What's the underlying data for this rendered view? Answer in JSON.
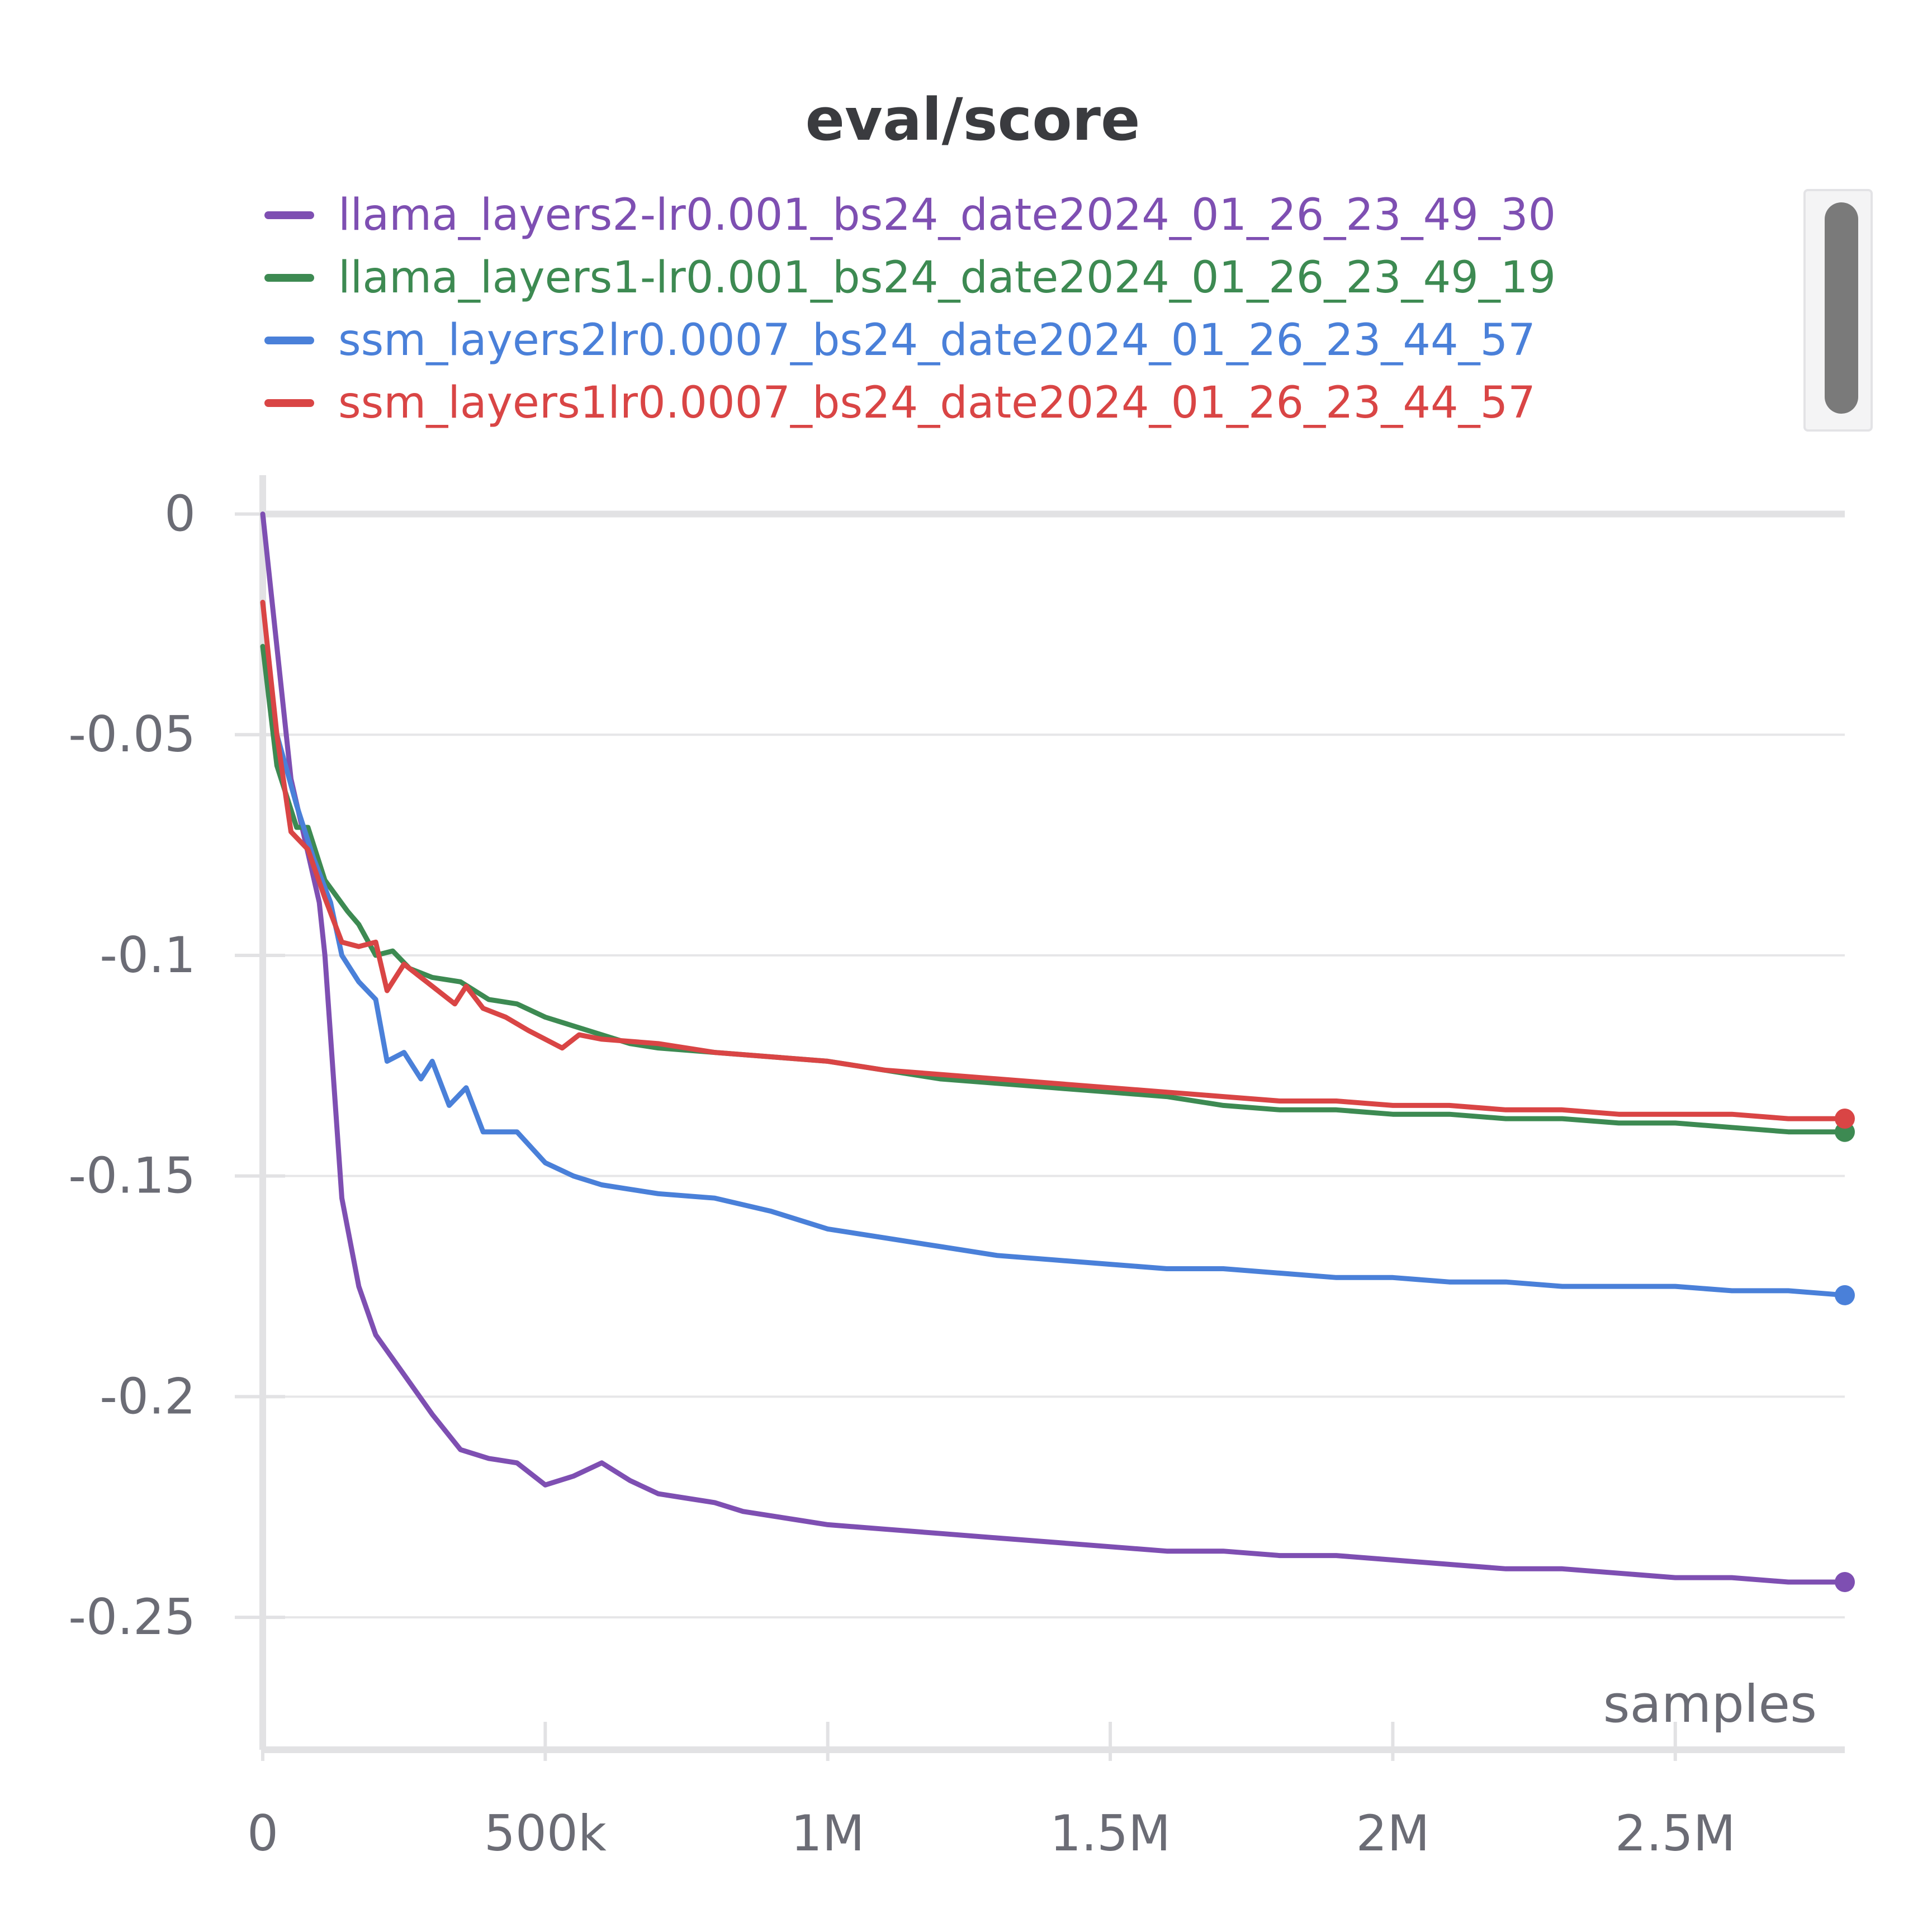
{
  "chart_data": {
    "type": "line",
    "title": "eval/score",
    "xlabel": "samples",
    "ylabel": "",
    "xlim": [
      0,
      2800000
    ],
    "ylim": [
      -0.28,
      0.005
    ],
    "x_ticks": [
      0,
      500000,
      1000000,
      1500000,
      2000000,
      2500000
    ],
    "x_tick_labels": [
      "0",
      "500k",
      "1M",
      "1.5M",
      "2M",
      "2.5M"
    ],
    "y_ticks": [
      0,
      -0.05,
      -0.1,
      -0.15,
      -0.2,
      -0.25
    ],
    "y_tick_labels": [
      "0",
      "-0.05",
      "-0.1",
      "-0.15",
      "-0.2",
      "-0.25"
    ],
    "grid": true,
    "legend_position": "top",
    "series": [
      {
        "name": "llama_layers2-lr0.001_bs24_date2024_01_26_23_49_30",
        "color": "#7e4fb2",
        "points": [
          [
            0,
            0
          ],
          [
            50000,
            -0.06
          ],
          [
            100000,
            -0.088
          ],
          [
            110000,
            -0.1
          ],
          [
            140000,
            -0.155
          ],
          [
            170000,
            -0.175
          ],
          [
            200000,
            -0.186
          ],
          [
            250000,
            -0.195
          ],
          [
            300000,
            -0.204
          ],
          [
            350000,
            -0.212
          ],
          [
            400000,
            -0.214
          ],
          [
            450000,
            -0.215
          ],
          [
            500000,
            -0.22
          ],
          [
            550000,
            -0.218
          ],
          [
            600000,
            -0.215
          ],
          [
            650000,
            -0.219
          ],
          [
            700000,
            -0.222
          ],
          [
            750000,
            -0.223
          ],
          [
            800000,
            -0.224
          ],
          [
            850000,
            -0.226
          ],
          [
            900000,
            -0.227
          ],
          [
            950000,
            -0.228
          ],
          [
            1000000,
            -0.229
          ],
          [
            1100000,
            -0.23
          ],
          [
            1200000,
            -0.231
          ],
          [
            1300000,
            -0.232
          ],
          [
            1400000,
            -0.233
          ],
          [
            1500000,
            -0.234
          ],
          [
            1600000,
            -0.235
          ],
          [
            1700000,
            -0.235
          ],
          [
            1800000,
            -0.236
          ],
          [
            1900000,
            -0.236
          ],
          [
            2000000,
            -0.237
          ],
          [
            2100000,
            -0.238
          ],
          [
            2200000,
            -0.239
          ],
          [
            2300000,
            -0.239
          ],
          [
            2400000,
            -0.24
          ],
          [
            2500000,
            -0.241
          ],
          [
            2600000,
            -0.241
          ],
          [
            2700000,
            -0.242
          ],
          [
            2800000,
            -0.242
          ]
        ]
      },
      {
        "name": "llama_layers1-lr0.001_bs24_date2024_01_26_23_49_19",
        "color": "#3d8a52",
        "points": [
          [
            0,
            -0.03
          ],
          [
            25000,
            -0.057
          ],
          [
            60000,
            -0.071
          ],
          [
            80000,
            -0.071
          ],
          [
            110000,
            -0.083
          ],
          [
            150000,
            -0.09
          ],
          [
            170000,
            -0.093
          ],
          [
            200000,
            -0.1
          ],
          [
            230000,
            -0.099
          ],
          [
            260000,
            -0.103
          ],
          [
            300000,
            -0.105
          ],
          [
            350000,
            -0.106
          ],
          [
            400000,
            -0.11
          ],
          [
            450000,
            -0.111
          ],
          [
            500000,
            -0.114
          ],
          [
            550000,
            -0.116
          ],
          [
            600000,
            -0.118
          ],
          [
            650000,
            -0.12
          ],
          [
            700000,
            -0.121
          ],
          [
            800000,
            -0.122
          ],
          [
            900000,
            -0.123
          ],
          [
            1000000,
            -0.124
          ],
          [
            1100000,
            -0.126
          ],
          [
            1200000,
            -0.128
          ],
          [
            1300000,
            -0.129
          ],
          [
            1400000,
            -0.13
          ],
          [
            1500000,
            -0.131
          ],
          [
            1600000,
            -0.132
          ],
          [
            1700000,
            -0.134
          ],
          [
            1800000,
            -0.135
          ],
          [
            1900000,
            -0.135
          ],
          [
            2000000,
            -0.136
          ],
          [
            2100000,
            -0.136
          ],
          [
            2200000,
            -0.137
          ],
          [
            2300000,
            -0.137
          ],
          [
            2400000,
            -0.138
          ],
          [
            2500000,
            -0.138
          ],
          [
            2600000,
            -0.139
          ],
          [
            2700000,
            -0.14
          ],
          [
            2800000,
            -0.14
          ]
        ]
      },
      {
        "name": "ssm_layers2lr0.0007_bs24_date2024_01_26_23_44_57",
        "color": "#4a80d9",
        "points": [
          [
            25000,
            -0.05
          ],
          [
            60000,
            -0.066
          ],
          [
            90000,
            -0.078
          ],
          [
            120000,
            -0.088
          ],
          [
            140000,
            -0.1
          ],
          [
            170000,
            -0.106
          ],
          [
            200000,
            -0.11
          ],
          [
            220000,
            -0.124
          ],
          [
            250000,
            -0.122
          ],
          [
            280000,
            -0.128
          ],
          [
            300000,
            -0.124
          ],
          [
            330000,
            -0.134
          ],
          [
            360000,
            -0.13
          ],
          [
            390000,
            -0.14
          ],
          [
            450000,
            -0.14
          ],
          [
            500000,
            -0.147
          ],
          [
            550000,
            -0.15
          ],
          [
            600000,
            -0.152
          ],
          [
            650000,
            -0.153
          ],
          [
            700000,
            -0.154
          ],
          [
            800000,
            -0.155
          ],
          [
            900000,
            -0.158
          ],
          [
            1000000,
            -0.162
          ],
          [
            1100000,
            -0.164
          ],
          [
            1200000,
            -0.166
          ],
          [
            1300000,
            -0.168
          ],
          [
            1400000,
            -0.169
          ],
          [
            1500000,
            -0.17
          ],
          [
            1600000,
            -0.171
          ],
          [
            1700000,
            -0.171
          ],
          [
            1800000,
            -0.172
          ],
          [
            1900000,
            -0.173
          ],
          [
            2000000,
            -0.173
          ],
          [
            2100000,
            -0.174
          ],
          [
            2200000,
            -0.174
          ],
          [
            2300000,
            -0.175
          ],
          [
            2400000,
            -0.175
          ],
          [
            2500000,
            -0.175
          ],
          [
            2600000,
            -0.176
          ],
          [
            2700000,
            -0.176
          ],
          [
            2800000,
            -0.177
          ]
        ]
      },
      {
        "name": "ssm_layers1lr0.0007_bs24_date2024_01_26_23_44_57",
        "color": "#d94545",
        "points": [
          [
            0,
            -0.02
          ],
          [
            25000,
            -0.05
          ],
          [
            50000,
            -0.072
          ],
          [
            80000,
            -0.076
          ],
          [
            110000,
            -0.087
          ],
          [
            140000,
            -0.097
          ],
          [
            170000,
            -0.098
          ],
          [
            200000,
            -0.097
          ],
          [
            220000,
            -0.108
          ],
          [
            250000,
            -0.102
          ],
          [
            280000,
            -0.105
          ],
          [
            310000,
            -0.108
          ],
          [
            340000,
            -0.111
          ],
          [
            360000,
            -0.107
          ],
          [
            390000,
            -0.112
          ],
          [
            430000,
            -0.114
          ],
          [
            470000,
            -0.117
          ],
          [
            530000,
            -0.121
          ],
          [
            560000,
            -0.118
          ],
          [
            600000,
            -0.119
          ],
          [
            700000,
            -0.12
          ],
          [
            800000,
            -0.122
          ],
          [
            900000,
            -0.123
          ],
          [
            1000000,
            -0.124
          ],
          [
            1100000,
            -0.126
          ],
          [
            1200000,
            -0.127
          ],
          [
            1300000,
            -0.128
          ],
          [
            1400000,
            -0.129
          ],
          [
            1500000,
            -0.13
          ],
          [
            1600000,
            -0.131
          ],
          [
            1700000,
            -0.132
          ],
          [
            1800000,
            -0.133
          ],
          [
            1900000,
            -0.133
          ],
          [
            2000000,
            -0.134
          ],
          [
            2100000,
            -0.134
          ],
          [
            2200000,
            -0.135
          ],
          [
            2300000,
            -0.135
          ],
          [
            2400000,
            -0.136
          ],
          [
            2500000,
            -0.136
          ],
          [
            2600000,
            -0.136
          ],
          [
            2700000,
            -0.137
          ],
          [
            2800000,
            -0.137
          ]
        ]
      }
    ]
  }
}
